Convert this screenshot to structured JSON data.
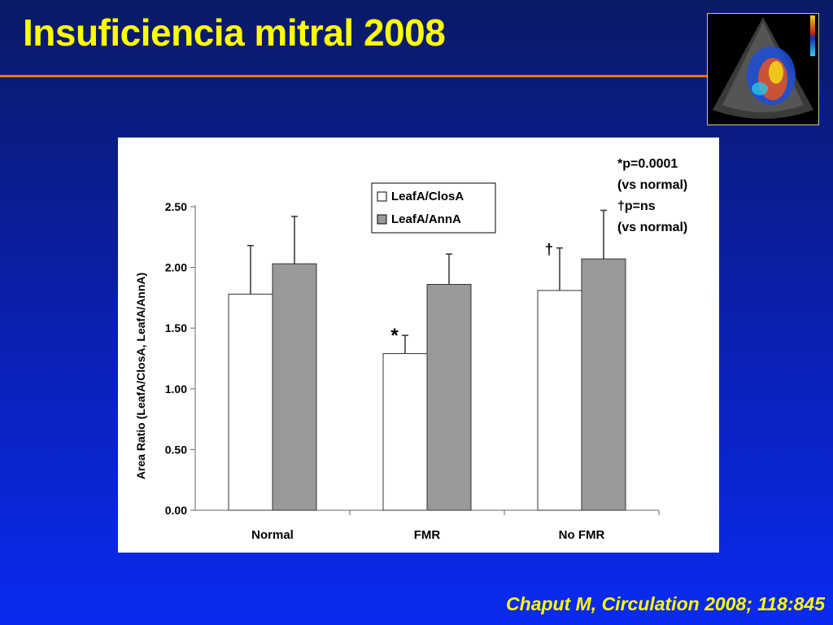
{
  "slide": {
    "title": "Insuficiencia mitral 2008",
    "citation": "Chaput M, Circulation 2008; 118:845"
  },
  "colors": {
    "title": "#ffff00",
    "rule": "#e8741e",
    "series_closa": "#ffffff",
    "series_anna": "#999999"
  },
  "thumbnail": {
    "icon": "echocardiogram-color-doppler-image"
  },
  "chart_data": {
    "type": "bar",
    "title": "",
    "xlabel": "",
    "ylabel": "Area Ratio (LeafA/ClosA, LeafA/AnnA)",
    "ylim": [
      0,
      2.5
    ],
    "yticks": [
      "0.00",
      "0.50",
      "1.00",
      "1.50",
      "2.00",
      "2.50"
    ],
    "categories": [
      "Normal",
      "FMR",
      "No FMR"
    ],
    "series": [
      {
        "name": "LeafA/ClosA",
        "values": [
          1.78,
          1.29,
          1.81
        ],
        "errors": [
          0.4,
          0.15,
          0.35
        ]
      },
      {
        "name": "LeafA/AnnA",
        "values": [
          2.03,
          1.86,
          2.07
        ],
        "errors": [
          0.39,
          0.25,
          0.4
        ]
      }
    ],
    "markers": [
      {
        "category": "FMR",
        "series": "LeafA/ClosA",
        "symbol": "*"
      },
      {
        "category": "No FMR",
        "series": "LeafA/ClosA",
        "symbol": "†"
      }
    ],
    "legend": "top-center",
    "annotations": [
      "*p=0.0001",
      "(vs normal)",
      "†p=ns",
      "(vs normal)"
    ]
  }
}
